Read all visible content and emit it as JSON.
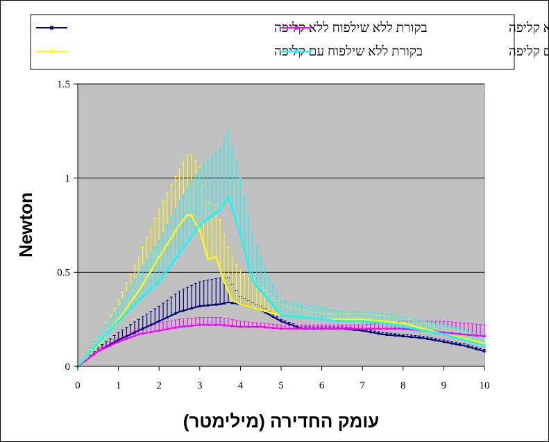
{
  "chart_data": {
    "type": "line",
    "title": "",
    "xlabel": "עומק החדירה (מילימטר)",
    "ylabel": "Newton",
    "xlim": [
      0,
      10
    ],
    "ylim": [
      0,
      1.5
    ],
    "xticks": [
      "0",
      "1",
      "2",
      "3",
      "4",
      "5",
      "6",
      "7",
      "8",
      "9",
      "10"
    ],
    "yticks": [
      "0",
      "0.5",
      "1",
      "1.5"
    ],
    "grid": "horizontal",
    "legend_position": "top",
    "background": "#c0c0c0",
    "series": [
      {
        "name": "בקורת ללא שילפוח ללא קליפה",
        "color": "#00007f",
        "marker": "diamond",
        "x": [
          0,
          0.5,
          1,
          1.5,
          2,
          2.5,
          3,
          3.5,
          3.7,
          4,
          4.5,
          5,
          5.5,
          6,
          6.5,
          7,
          7.5,
          8,
          8.5,
          9,
          9.5,
          10
        ],
        "y": [
          0,
          0.08,
          0.14,
          0.19,
          0.24,
          0.29,
          0.32,
          0.33,
          0.34,
          0.33,
          0.3,
          0.24,
          0.2,
          0.2,
          0.2,
          0.19,
          0.17,
          0.16,
          0.15,
          0.13,
          0.11,
          0.08
        ],
        "err": [
          0,
          0.02,
          0.04,
          0.06,
          0.08,
          0.11,
          0.13,
          0.14,
          0.13,
          0.04,
          0.02,
          0.01,
          0.01,
          0.01,
          0.01,
          0.01,
          0.01,
          0.01,
          0.01,
          0.01,
          0.01,
          0.01
        ]
      },
      {
        "name": "בקורת משולפחת ללא קליפה",
        "color": "#ff00ff",
        "marker": "square",
        "x": [
          0,
          0.5,
          1,
          1.5,
          2,
          2.5,
          3,
          3.5,
          4,
          4.5,
          5,
          5.5,
          6,
          6.5,
          7,
          7.5,
          8,
          8.5,
          9,
          9.5,
          10
        ],
        "y": [
          0,
          0.08,
          0.13,
          0.17,
          0.19,
          0.21,
          0.22,
          0.22,
          0.21,
          0.21,
          0.2,
          0.2,
          0.2,
          0.2,
          0.2,
          0.2,
          0.2,
          0.19,
          0.18,
          0.17,
          0.16
        ],
        "err": [
          0,
          0.01,
          0.02,
          0.03,
          0.04,
          0.04,
          0.04,
          0.04,
          0.03,
          0.02,
          0.02,
          0.02,
          0.02,
          0.02,
          0.02,
          0.03,
          0.04,
          0.05,
          0.06,
          0.06,
          0.06
        ]
      },
      {
        "name": "בקורת ללא שילפוח עם קליפה",
        "color": "#ffff00",
        "marker": "triangle",
        "x": [
          0,
          0.5,
          1,
          1.5,
          2,
          2.5,
          2.75,
          3,
          3.2,
          3.4,
          3.6,
          3.8,
          4,
          4.5,
          5,
          5.5,
          6,
          6.5,
          7,
          7.5,
          8,
          8.5,
          9,
          9.5,
          10
        ],
        "y": [
          0,
          0.11,
          0.25,
          0.4,
          0.58,
          0.75,
          0.82,
          0.72,
          0.57,
          0.58,
          0.45,
          0.35,
          0.33,
          0.3,
          0.27,
          0.26,
          0.25,
          0.25,
          0.25,
          0.24,
          0.23,
          0.2,
          0.17,
          0.15,
          0.12
        ],
        "err": [
          0,
          0.04,
          0.1,
          0.18,
          0.26,
          0.3,
          0.32,
          0.34,
          0.3,
          0.28,
          0.25,
          0.22,
          0.18,
          0.12,
          0.06,
          0.04,
          0.03,
          0.03,
          0.03,
          0.03,
          0.03,
          0.03,
          0.03,
          0.03,
          0.03
        ]
      },
      {
        "name": "ביקורת משולפחת עם קליפה",
        "color": "#00ffff",
        "marker": "star",
        "x": [
          0,
          0.5,
          1,
          1.5,
          2,
          2.5,
          3,
          3.5,
          3.7,
          4,
          4.3,
          4.7,
          5,
          5.5,
          6,
          6.5,
          7,
          7.5,
          8,
          8.5,
          9,
          9.5,
          10
        ],
        "y": [
          0,
          0.12,
          0.24,
          0.35,
          0.45,
          0.6,
          0.75,
          0.83,
          0.9,
          0.7,
          0.45,
          0.35,
          0.27,
          0.26,
          0.25,
          0.24,
          0.24,
          0.23,
          0.21,
          0.19,
          0.17,
          0.14,
          0.11
        ],
        "err": [
          0,
          0.04,
          0.08,
          0.15,
          0.22,
          0.28,
          0.3,
          0.33,
          0.35,
          0.3,
          0.25,
          0.12,
          0.08,
          0.07,
          0.06,
          0.05,
          0.05,
          0.05,
          0.05,
          0.05,
          0.05,
          0.05,
          0.05
        ]
      }
    ]
  }
}
